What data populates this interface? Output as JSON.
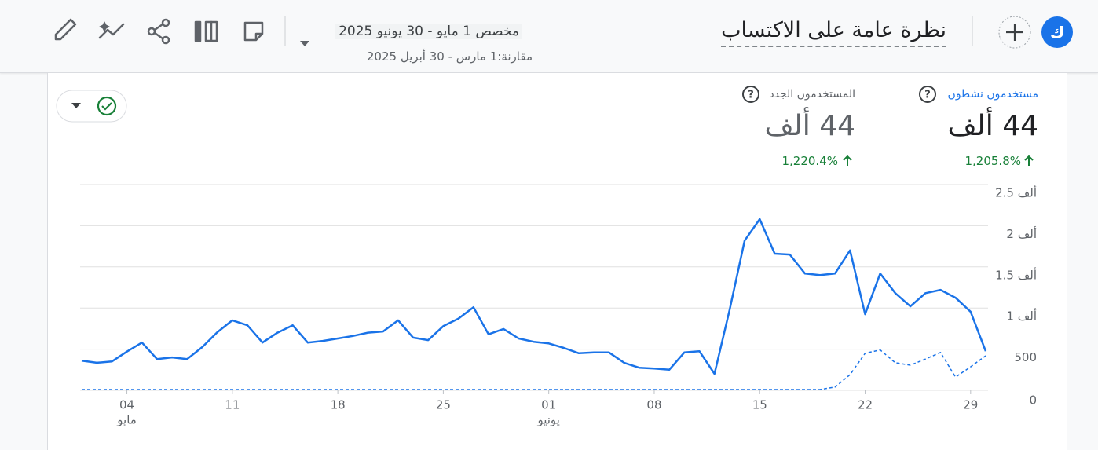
{
  "header": {
    "avatar": "ك",
    "title": "نظرة عامة على الاكتساب",
    "date_range": "مخصص 1 مايو - 30 يونيو 2025",
    "comparison": "مقارنة:1 مارس - 30 أبريل 2025"
  },
  "metrics": [
    {
      "label": "مستخدمون نشطون",
      "value": "44 ألف",
      "change": "1,205.8%"
    },
    {
      "label": "المستخدمون الجدد",
      "value": "44 ألف",
      "change": "1,220.4%"
    }
  ],
  "chart_data": {
    "type": "line",
    "categories": [
      null,
      null,
      null,
      "04",
      null,
      null,
      null,
      null,
      null,
      null,
      "11",
      null,
      null,
      null,
      null,
      null,
      null,
      "18",
      null,
      null,
      null,
      null,
      null,
      null,
      "25",
      null,
      null,
      null,
      null,
      null,
      null,
      "01",
      null,
      null,
      null,
      null,
      null,
      null,
      "08",
      null,
      null,
      null,
      null,
      null,
      null,
      "15",
      null,
      null,
      null,
      null,
      null,
      null,
      "22",
      null,
      null,
      null,
      null,
      null,
      null,
      "29",
      null
    ],
    "months": [
      null,
      null,
      null,
      "مايو",
      null,
      null,
      null,
      null,
      null,
      null,
      null,
      null,
      null,
      null,
      null,
      null,
      null,
      null,
      null,
      null,
      null,
      null,
      null,
      null,
      null,
      null,
      null,
      null,
      null,
      null,
      null,
      "يونيو",
      null,
      null,
      null,
      null,
      null,
      null,
      null,
      null,
      null,
      null,
      null,
      null,
      null,
      null,
      null,
      null,
      null,
      null,
      null,
      null,
      null,
      null,
      null,
      null,
      null,
      null,
      null,
      null,
      null
    ],
    "series": [
      {
        "color": "#1a73e8",
        "dashed": false,
        "values": [
          360,
          335,
          350,
          470,
          580,
          380,
          400,
          380,
          525,
          705,
          850,
          790,
          580,
          700,
          790,
          580,
          600,
          630,
          660,
          700,
          715,
          850,
          640,
          610,
          780,
          870,
          1010,
          680,
          745,
          630,
          590,
          570,
          515,
          450,
          460,
          460,
          335,
          275,
          265,
          250,
          460,
          475,
          200,
          975,
          1820,
          2080,
          1660,
          1650,
          1420,
          1400,
          1420,
          1700,
          925,
          1420,
          1180,
          1020,
          1180,
          1220,
          1125,
          955,
          475
        ]
      },
      {
        "color": "#1a73e8",
        "dashed": true,
        "values": [
          10,
          10,
          10,
          10,
          10,
          10,
          10,
          10,
          10,
          10,
          10,
          10,
          10,
          10,
          10,
          10,
          10,
          10,
          10,
          10,
          10,
          10,
          10,
          10,
          10,
          10,
          10,
          10,
          10,
          10,
          10,
          10,
          10,
          10,
          10,
          10,
          10,
          10,
          10,
          10,
          10,
          10,
          10,
          10,
          10,
          10,
          10,
          10,
          10,
          10,
          40,
          190,
          450,
          490,
          335,
          305,
          380,
          460,
          160,
          285,
          420
        ]
      }
    ],
    "ylim": [
      0,
      2500
    ],
    "yticks": [
      0,
      500,
      {
        "value": 1000,
        "label": "1 ألف"
      },
      {
        "value": 1500,
        "label": "1.5 ألف"
      },
      {
        "value": 2000,
        "label": "2 ألف"
      },
      {
        "value": 2500,
        "label": "2.5 ألف"
      }
    ],
    "grid": true
  }
}
